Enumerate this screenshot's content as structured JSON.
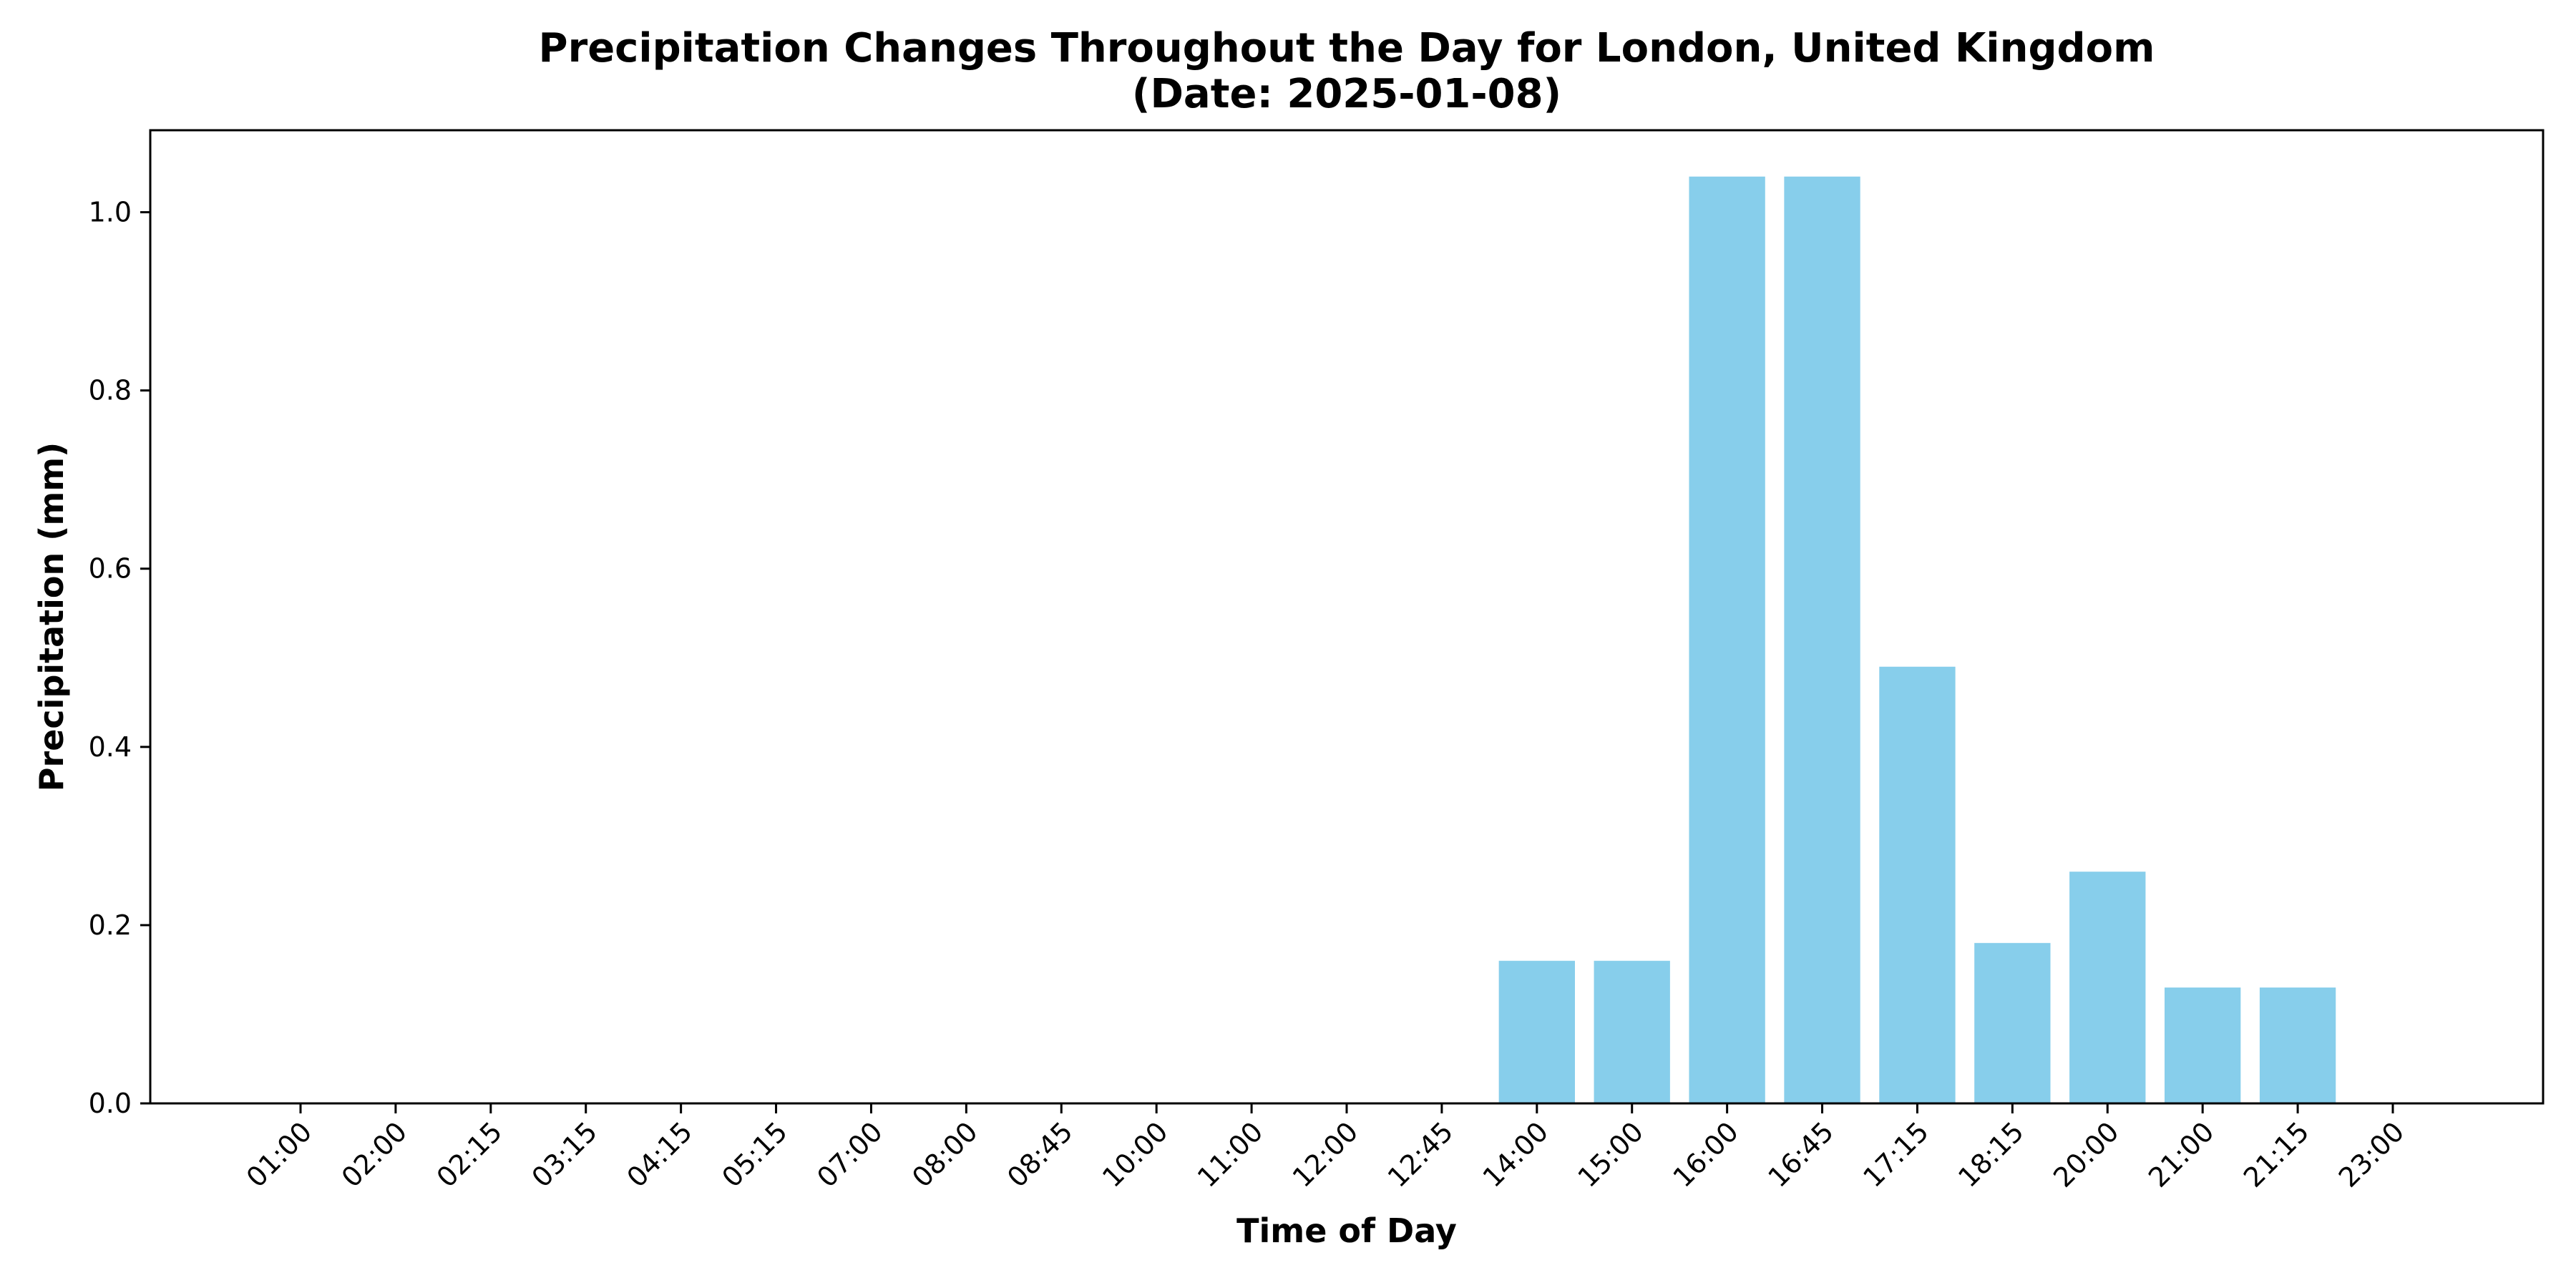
{
  "chart_data": {
    "type": "bar",
    "title": "Precipitation Changes Throughout the Day for London, United Kingdom",
    "subtitle": "(Date: 2025-01-08)",
    "xlabel": "Time of Day",
    "ylabel": "Precipitation (mm)",
    "categories": [
      "01:00",
      "02:00",
      "02:15",
      "03:15",
      "04:15",
      "05:15",
      "07:00",
      "08:00",
      "08:45",
      "10:00",
      "11:00",
      "12:00",
      "12:45",
      "14:00",
      "15:00",
      "16:00",
      "16:45",
      "17:15",
      "18:15",
      "20:00",
      "21:00",
      "21:15",
      "23:00"
    ],
    "values": [
      0,
      0,
      0,
      0,
      0,
      0,
      0,
      0,
      0,
      0,
      0,
      0,
      0,
      0.16,
      0.16,
      1.04,
      1.04,
      0.49,
      0.18,
      0.26,
      0.13,
      0.13,
      0
    ],
    "ylim": [
      0,
      1.092
    ],
    "yticks": [
      0.0,
      0.2,
      0.4,
      0.6,
      0.8,
      1.0
    ],
    "ytick_labels": [
      "0.0",
      "0.2",
      "0.4",
      "0.6",
      "0.8",
      "1.0"
    ],
    "grid": false,
    "legend": "none",
    "bar_color": "#87CEEB"
  }
}
